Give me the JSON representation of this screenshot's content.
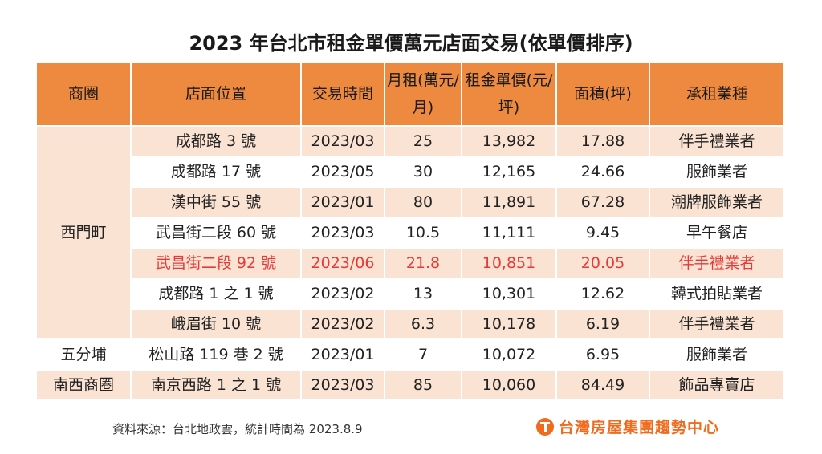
{
  "title": "2023 年台北市租金單價萬元店面交易(依單價排序)",
  "table": {
    "headers": [
      "商圈",
      "店面位置",
      "交易時間",
      "月租(萬元/月)",
      "租金單價(元/坪)",
      "面積(坪)",
      "承租業種"
    ],
    "areas": [
      "西門町",
      "五分埔",
      "南西商圈"
    ],
    "rows": [
      {
        "loc": "成都路 3 號",
        "date": "2023/03",
        "rent": "25",
        "unit": "13,982",
        "size": "17.88",
        "type": "伴手禮業者"
      },
      {
        "loc": "成都路 17 號",
        "date": "2023/05",
        "rent": "30",
        "unit": "12,165",
        "size": "24.66",
        "type": "服飾業者"
      },
      {
        "loc": "漢中街 55 號",
        "date": "2023/01",
        "rent": "80",
        "unit": "11,891",
        "size": "67.28",
        "type": "潮牌服飾業者"
      },
      {
        "loc": "武昌街二段 60 號",
        "date": "2023/03",
        "rent": "10.5",
        "unit": "11,111",
        "size": "9.45",
        "type": "早午餐店"
      },
      {
        "loc": "武昌街二段 92 號",
        "date": "2023/06",
        "rent": "21.8",
        "unit": "10,851",
        "size": "20.05",
        "type": "伴手禮業者"
      },
      {
        "loc": "成都路 1 之 1 號",
        "date": "2023/02",
        "rent": "13",
        "unit": "10,301",
        "size": "12.62",
        "type": "韓式拍貼業者"
      },
      {
        "loc": "峨眉街 10 號",
        "date": "2023/02",
        "rent": "6.3",
        "unit": "10,178",
        "size": "6.19",
        "type": "伴手禮業者"
      },
      {
        "loc": "松山路 119 巷 2 號",
        "date": "2023/01",
        "rent": "7",
        "unit": "10,072",
        "size": "6.95",
        "type": "服飾業者"
      },
      {
        "loc": "南京西路 1 之 1 號",
        "date": "2023/03",
        "rent": "85",
        "unit": "10,060",
        "size": "84.49",
        "type": "飾品專賣店"
      }
    ]
  },
  "source": "資料來源：台北地政雲，統計時間為 2023.8.9",
  "logo": "台灣房屋集團趨勢中心",
  "colors": {
    "header": "#ee8a40",
    "band": "#fbe3d3",
    "highlight": "#e63a3a",
    "logo": "#f06b1e"
  }
}
